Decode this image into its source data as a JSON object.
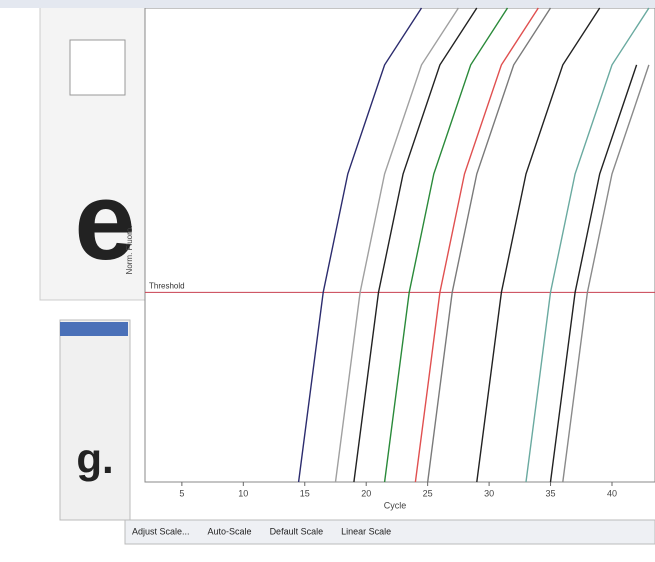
{
  "fragments": [
    "e",
    "g."
  ],
  "buttons": [
    "Adjust Scale...",
    "Auto-Scale",
    "Default Scale",
    "Linear Scale"
  ],
  "chart_data": {
    "type": "line",
    "x_label": "Cycle",
    "y_label": "Norm. Fluoro.",
    "threshold": {
      "label": "Threshold",
      "value": 4
    },
    "xlim": [
      2,
      43.5
    ],
    "xticks": [
      5,
      10,
      15,
      20,
      25,
      30,
      35,
      40
    ],
    "ylim": [
      0,
      10
    ],
    "series": [
      {
        "color": "#2c2c6e",
        "x": [
          14.5,
          15.5,
          16.5,
          18.5,
          21.5,
          24.5
        ],
        "values": [
          0,
          2,
          4,
          6.5,
          8.8,
          10
        ]
      },
      {
        "color": "#a0a0a0",
        "x": [
          17.5,
          18.5,
          19.5,
          21.5,
          24.5,
          27.5
        ],
        "values": [
          0,
          2,
          4,
          6.5,
          8.8,
          10
        ]
      },
      {
        "color": "#222222",
        "x": [
          19,
          20,
          21,
          23,
          26,
          29
        ],
        "values": [
          0,
          2,
          4,
          6.5,
          8.8,
          10
        ]
      },
      {
        "color": "#2a8a3a",
        "x": [
          21.5,
          22.5,
          23.5,
          25.5,
          28.5,
          31.5
        ],
        "values": [
          0,
          2,
          4,
          6.5,
          8.8,
          10
        ]
      },
      {
        "color": "#e05050",
        "x": [
          24,
          25,
          26,
          28,
          31,
          34
        ],
        "values": [
          0,
          2,
          4,
          6.5,
          8.8,
          10
        ]
      },
      {
        "color": "#7a7a7a",
        "x": [
          25,
          26,
          27,
          29,
          32,
          35
        ],
        "values": [
          0,
          2,
          4,
          6.5,
          8.8,
          10
        ]
      },
      {
        "color": "#222222",
        "x": [
          29,
          30,
          31,
          33,
          36,
          39
        ],
        "values": [
          0,
          2,
          4,
          6.5,
          8.8,
          10
        ]
      },
      {
        "color": "#6aaaa0",
        "x": [
          33,
          34,
          35,
          37,
          40,
          43
        ],
        "values": [
          0,
          2,
          4,
          6.5,
          8.8,
          10
        ]
      },
      {
        "color": "#222222",
        "x": [
          35,
          36,
          37,
          39,
          42
        ],
        "values": [
          0,
          2,
          4,
          6.5,
          8.8
        ]
      },
      {
        "color": "#8a8a8a",
        "x": [
          36,
          37,
          38,
          40,
          43
        ],
        "values": [
          0,
          2,
          4,
          6.5,
          8.8
        ]
      }
    ]
  }
}
